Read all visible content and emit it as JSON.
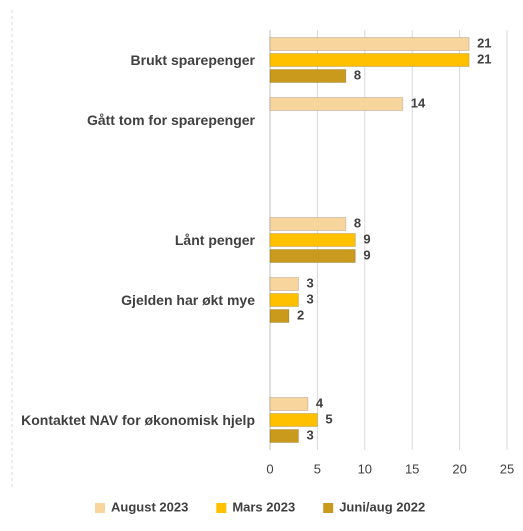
{
  "chart_data": {
    "type": "bar",
    "orientation": "horizontal",
    "categories": [
      "Brukt sparepenger",
      "Gått tom for sparepenger",
      null,
      "Lånt penger",
      "Gjelden har økt mye",
      null,
      "Kontaktet NAV for økonomisk hjelp"
    ],
    "series": [
      {
        "name": "August 2023",
        "color": "#f7d59c",
        "values": [
          21,
          14,
          null,
          8,
          3,
          null,
          4
        ]
      },
      {
        "name": "Mars 2023",
        "color": "#ffc000",
        "values": [
          21,
          null,
          null,
          9,
          3,
          null,
          5
        ]
      },
      {
        "name": "Juni/aug 2022",
        "color": "#c99a1c",
        "values": [
          8,
          null,
          null,
          9,
          2,
          null,
          3
        ]
      }
    ],
    "xlim": [
      0,
      25
    ],
    "xticks": [
      0,
      5,
      10,
      15,
      20,
      25
    ],
    "grid": true,
    "legend": "bottom"
  }
}
